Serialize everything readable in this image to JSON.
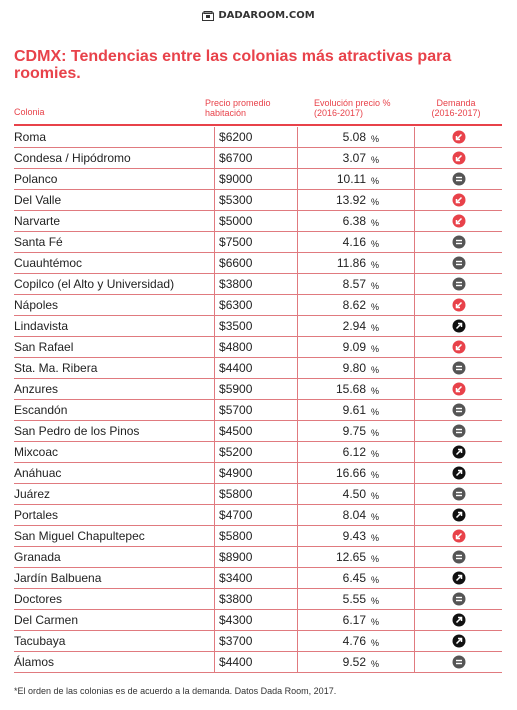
{
  "brand": {
    "name": "DADAROOM.COM",
    "logo_icon": "box-logo-icon"
  },
  "title": "CDMX: Tendencias entre las colonias más atractivas para roomies.",
  "headers": {
    "colonia": "Colonia",
    "precio": "Precio promedio habitación",
    "evolucion": "Evolución precio % (2016-2017)",
    "demanda": "Demanda (2016-2017)"
  },
  "colors": {
    "accent": "#e8424a",
    "down": "#e8424a",
    "equal": "#555555",
    "up": "#111111"
  },
  "rows": [
    {
      "colonia": "Roma",
      "precio_cur": "$",
      "precio": "6200",
      "evolucion": "5.08",
      "pct": "%",
      "demanda": "down"
    },
    {
      "colonia": "Condesa / Hipódromo",
      "precio_cur": "$",
      "precio": "6700",
      "evolucion": "3.07",
      "pct": "%",
      "demanda": "down"
    },
    {
      "colonia": "Polanco",
      "precio_cur": "$",
      "precio": "9000",
      "evolucion": "10.11",
      "pct": "%",
      "demanda": "equal"
    },
    {
      "colonia": "Del Valle",
      "precio_cur": "$",
      "precio": "5300",
      "evolucion": "13.92",
      "pct": "%",
      "demanda": "down"
    },
    {
      "colonia": "Narvarte",
      "precio_cur": "$",
      "precio": "5000",
      "evolucion": "6.38",
      "pct": "%",
      "demanda": "down"
    },
    {
      "colonia": "Santa Fé",
      "precio_cur": "$",
      "precio": "7500",
      "evolucion": "4.16",
      "pct": "%",
      "demanda": "equal"
    },
    {
      "colonia": "Cuauhtémoc",
      "precio_cur": "$",
      "precio": "6600",
      "evolucion": "11.86",
      "pct": "%",
      "demanda": "equal"
    },
    {
      "colonia": "Copilco (el Alto y Universidad)",
      "precio_cur": "$",
      "precio": "3800",
      "evolucion": "8.57",
      "pct": "%",
      "demanda": "equal"
    },
    {
      "colonia": "Nápoles",
      "precio_cur": "$",
      "precio": "6300",
      "evolucion": "8.62",
      "pct": "%",
      "demanda": "down"
    },
    {
      "colonia": "Lindavista",
      "precio_cur": "$",
      "precio": "3500",
      "evolucion": "2.94",
      "pct": "%",
      "demanda": "up"
    },
    {
      "colonia": "San Rafael",
      "precio_cur": "$",
      "precio": "4800",
      "evolucion": "9.09",
      "pct": "%",
      "demanda": "down"
    },
    {
      "colonia": "Sta. Ma. Ribera",
      "precio_cur": "$",
      "precio": "4400",
      "evolucion": "9.80",
      "pct": "%",
      "demanda": "equal"
    },
    {
      "colonia": "Anzures",
      "precio_cur": "$",
      "precio": "5900",
      "evolucion": "15.68",
      "pct": "%",
      "demanda": "down"
    },
    {
      "colonia": "Escandón",
      "precio_cur": "$",
      "precio": "5700",
      "evolucion": "9.61",
      "pct": "%",
      "demanda": "equal"
    },
    {
      "colonia": "San Pedro de los Pinos",
      "precio_cur": "$",
      "precio": "4500",
      "evolucion": "9.75",
      "pct": "%",
      "demanda": "equal"
    },
    {
      "colonia": "Mixcoac",
      "precio_cur": "$",
      "precio": "5200",
      "evolucion": "6.12",
      "pct": "%",
      "demanda": "up"
    },
    {
      "colonia": "Anáhuac",
      "precio_cur": "$",
      "precio": "4900",
      "evolucion": "16.66",
      "pct": "%",
      "demanda": "up"
    },
    {
      "colonia": "Juárez",
      "precio_cur": "$",
      "precio": "5800",
      "evolucion": "4.50",
      "pct": "%",
      "demanda": "equal"
    },
    {
      "colonia": "Portales",
      "precio_cur": "$",
      "precio": "4700",
      "evolucion": "8.04",
      "pct": "%",
      "demanda": "up"
    },
    {
      "colonia": "San Miguel Chapultepec",
      "precio_cur": "$",
      "precio": "5800",
      "evolucion": "9.43",
      "pct": "%",
      "demanda": "down"
    },
    {
      "colonia": "Granada",
      "precio_cur": "$",
      "precio": "8900",
      "evolucion": "12.65",
      "pct": "%",
      "demanda": "equal"
    },
    {
      "colonia": "Jardín Balbuena",
      "precio_cur": "$",
      "precio": "3400",
      "evolucion": "6.45",
      "pct": "%",
      "demanda": "up"
    },
    {
      "colonia": "Doctores",
      "precio_cur": "$",
      "precio": "3800",
      "evolucion": "5.55",
      "pct": "%",
      "demanda": "equal"
    },
    {
      "colonia": "Del Carmen",
      "precio_cur": "$",
      "precio": "4300",
      "evolucion": "6.17",
      "pct": "%",
      "demanda": "up"
    },
    {
      "colonia": "Tacubaya",
      "precio_cur": "$",
      "precio": "3700",
      "evolucion": "4.76",
      "pct": "%",
      "demanda": "up"
    },
    {
      "colonia": "Álamos",
      "precio_cur": "$",
      "precio": "4400",
      "evolucion": "9.52",
      "pct": "%",
      "demanda": "equal"
    }
  ],
  "footnote": "*El orden de las colonias es de acuerdo a la demanda. Datos Dada Room, 2017."
}
